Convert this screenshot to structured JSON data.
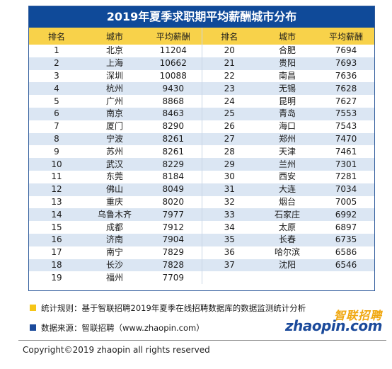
{
  "title": "2019年夏季求职期平均薪酬城市分布",
  "columns": [
    "排名",
    "城市",
    "平均薪酬",
    "排名",
    "城市",
    "平均薪酬"
  ],
  "rows": [
    [
      "1",
      "北京",
      "11204",
      "20",
      "合肥",
      "7694"
    ],
    [
      "2",
      "上海",
      "10662",
      "21",
      "贵阳",
      "7693"
    ],
    [
      "3",
      "深圳",
      "10088",
      "22",
      "南昌",
      "7636"
    ],
    [
      "4",
      "杭州",
      "9430",
      "23",
      "无锡",
      "7628"
    ],
    [
      "5",
      "广州",
      "8868",
      "24",
      "昆明",
      "7627"
    ],
    [
      "6",
      "南京",
      "8463",
      "25",
      "青岛",
      "7553"
    ],
    [
      "7",
      "厦门",
      "8290",
      "26",
      "海口",
      "7543"
    ],
    [
      "8",
      "宁波",
      "8261",
      "27",
      "郑州",
      "7470"
    ],
    [
      "9",
      "苏州",
      "8261",
      "28",
      "天津",
      "7461"
    ],
    [
      "10",
      "武汉",
      "8229",
      "29",
      "兰州",
      "7301"
    ],
    [
      "11",
      "东莞",
      "8184",
      "30",
      "西安",
      "7281"
    ],
    [
      "12",
      "佛山",
      "8049",
      "31",
      "大连",
      "7034"
    ],
    [
      "13",
      "重庆",
      "8020",
      "32",
      "烟台",
      "7005"
    ],
    [
      "14",
      "乌鲁木齐",
      "7977",
      "33",
      "石家庄",
      "6992"
    ],
    [
      "15",
      "成都",
      "7912",
      "34",
      "太原",
      "6897"
    ],
    [
      "16",
      "济南",
      "7904",
      "35",
      "长春",
      "6735"
    ],
    [
      "17",
      "南宁",
      "7829",
      "36",
      "哈尔滨",
      "6586"
    ],
    [
      "18",
      "长沙",
      "7828",
      "37",
      "沈阳",
      "6546"
    ],
    [
      "19",
      "福州",
      "7709",
      "",
      "",
      ""
    ]
  ],
  "notes": [
    {
      "text": "统计规则：基于智联招聘2019年夏季在线招聘数据库的数据监测统计分析",
      "color": "#f5c518"
    },
    {
      "text": "数据来源：智联招聘（www.zhaopin.com）",
      "color": "#1b4a9b"
    }
  ],
  "logo": {
    "cn": "智联招聘",
    "en": "zhaopin.com"
  },
  "copyright": "Copyright©2019 zhaopin all rights reserved",
  "colors": {
    "title_bg": "#0f4a99",
    "header_bg": "#f8d24a",
    "stripe": "#dbe6f3"
  }
}
